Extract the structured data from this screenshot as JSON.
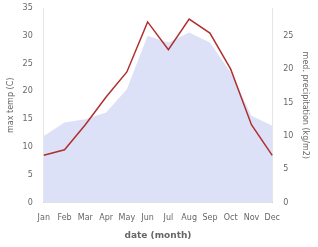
{
  "chart_data": {
    "type": "line",
    "categories": [
      "Jan",
      "Feb",
      "Mar",
      "Apr",
      "May",
      "Jun",
      "Jul",
      "Aug",
      "Sep",
      "Oct",
      "Nov",
      "Dec"
    ],
    "series": [
      {
        "name": "med. precipitation (kg/m2)",
        "type": "area",
        "axis": "y2",
        "color": "#c0c8f0",
        "values": [
          10.0,
          12.0,
          12.5,
          13.5,
          17.0,
          25.0,
          24.0,
          25.5,
          24.0,
          19.5,
          13.0,
          11.5
        ]
      },
      {
        "name": "max temp (C)",
        "type": "line",
        "color": "#b03030",
        "values": [
          8.5,
          9.5,
          14.0,
          19.0,
          23.5,
          32.5,
          27.5,
          33.0,
          30.5,
          24.0,
          14.0,
          8.5
        ]
      }
    ],
    "xlabel": "date (month)",
    "ylabel": "max temp (C)",
    "y2label": "med. precipitation (kg/m2)",
    "ylim": [
      0,
      35
    ],
    "yticks": [
      0,
      5,
      10,
      15,
      20,
      25,
      30,
      35
    ],
    "y2lim": [
      0,
      29.166
    ],
    "y2ticks": [
      0,
      5,
      10,
      15,
      20,
      25
    ],
    "grid": false
  }
}
